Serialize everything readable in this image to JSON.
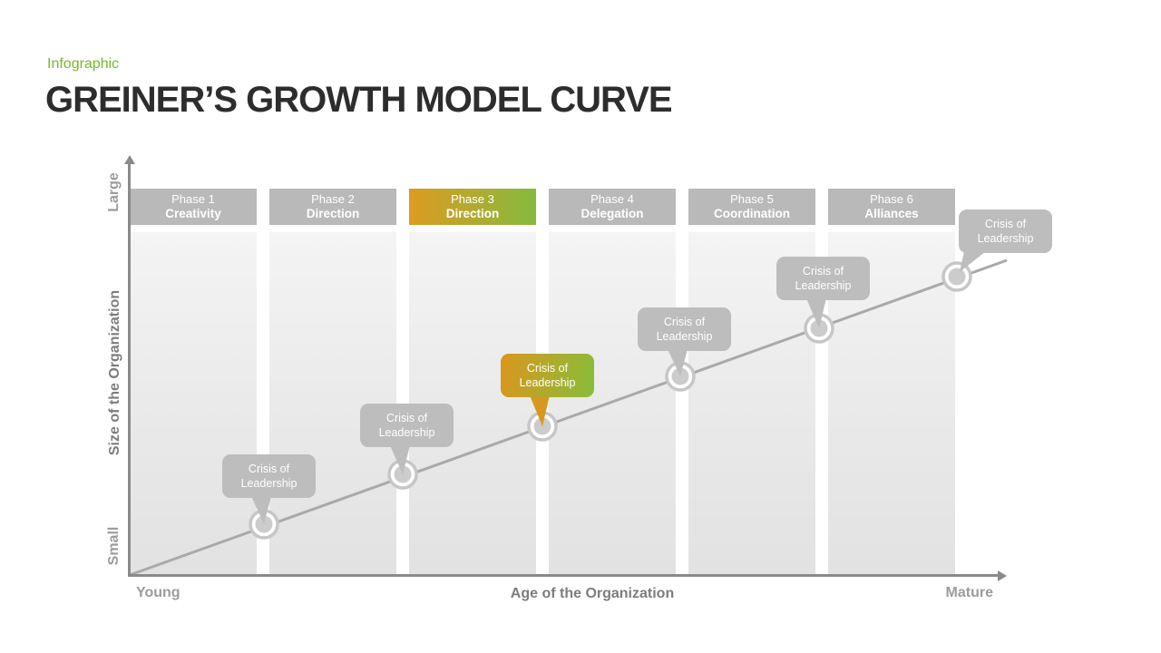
{
  "slide": {
    "tag": "Infographic",
    "title": "GREINER’S GROWTH MODEL CURVE"
  },
  "phases": [
    {
      "phase_label": "Phase 1",
      "name": "Creativity",
      "highlighted": false
    },
    {
      "phase_label": "Phase 2",
      "name": "Direction",
      "highlighted": false
    },
    {
      "phase_label": "Phase 3",
      "name": "Direction",
      "highlighted": true
    },
    {
      "phase_label": "Phase 4",
      "name": "Delegation",
      "highlighted": false
    },
    {
      "phase_label": "Phase 5",
      "name": "Coordination",
      "highlighted": false
    },
    {
      "phase_label": "Phase 6",
      "name": "Alliances",
      "highlighted": false
    }
  ],
  "crisis_callouts": [
    {
      "lines": [
        "Crisis of",
        "Leadership"
      ],
      "highlighted": false
    },
    {
      "lines": [
        "Crisis of",
        "Leadership"
      ],
      "highlighted": false
    },
    {
      "lines": [
        "Crisis of",
        "Leadership"
      ],
      "highlighted": true
    },
    {
      "lines": [
        "Crisis of",
        "Leadership"
      ],
      "highlighted": false
    },
    {
      "lines": [
        "Crisis of",
        "Leadership"
      ],
      "highlighted": false
    },
    {
      "lines": [
        "Crisis of",
        "Leadership"
      ],
      "highlighted": false
    }
  ],
  "axes": {
    "x": {
      "title": "Age of the Organization",
      "min_label": "Young",
      "max_label": "Mature"
    },
    "y": {
      "title": "Size of the Organization",
      "min_label": "Small",
      "max_label": "Large"
    }
  },
  "colors": {
    "accent_green": "#76b82a",
    "highlight_orange": "#dd9b21",
    "highlight_green": "#85ba3e",
    "phase_bar_gray": "#b9b9b9",
    "callout_gray": "#bdbdbd",
    "tail_orange": "#d5991f",
    "growth_line_gray": "#a9a9a9",
    "marker_ring_gray": "#c6c6c6",
    "marker_disc_gray": "#cccccc",
    "axis_gray": "#8a8a8a",
    "title_color": "#2d2d2d"
  }
}
